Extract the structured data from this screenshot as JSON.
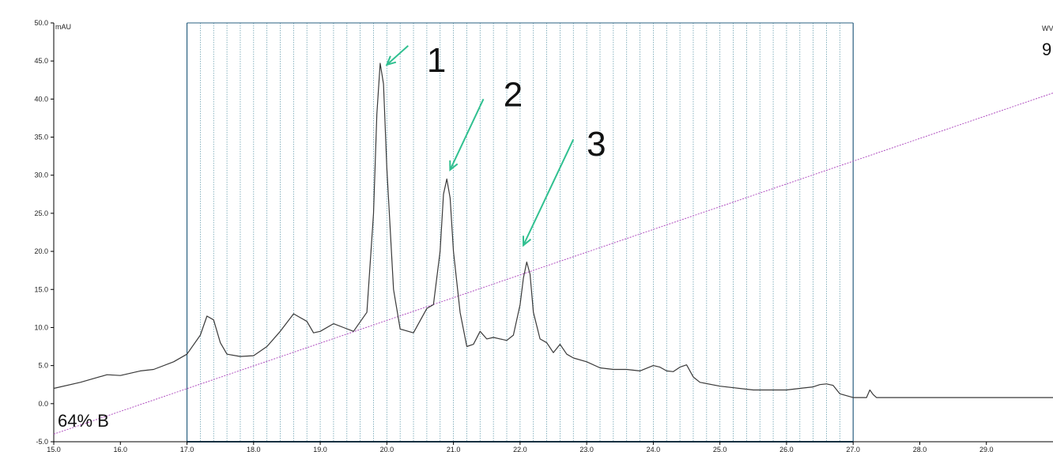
{
  "chart_data": {
    "type": "line",
    "title": "",
    "subtitle": "",
    "xlabel": "",
    "ylabel": "mAU",
    "ylabel_right": "WV",
    "right_value_text": "9",
    "gradient_label": "64% B",
    "xlim": [
      15.0,
      30.0
    ],
    "ylim": [
      -5.0,
      50.0
    ],
    "x_ticks": [
      15.0,
      16.0,
      17.0,
      18.0,
      19.0,
      20.0,
      21.0,
      22.0,
      23.0,
      24.0,
      25.0,
      26.0,
      27.0,
      28.0,
      29.0
    ],
    "x_tick_labels": [
      "15.0",
      "16.0",
      "17.0",
      "18.0",
      "19.0",
      "20.0",
      "21.0",
      "22.0",
      "23.0",
      "24.0",
      "25.0",
      "26.0",
      "27.0",
      "28.0",
      "29.0"
    ],
    "y_ticks": [
      -5.0,
      0.0,
      5.0,
      10.0,
      15.0,
      20.0,
      25.0,
      30.0,
      35.0,
      40.0,
      45.0,
      50.0
    ],
    "y_tick_labels": [
      "-5.0",
      "0.0",
      "5.0",
      "10.0",
      "15.0",
      "20.0",
      "25.0",
      "30.0",
      "35.0",
      "40.0",
      "45.0",
      "50.0"
    ],
    "series": [
      {
        "name": "",
        "x": [
          15.0,
          15.4,
          15.8,
          16.0,
          16.3,
          16.5,
          16.8,
          17.0,
          17.2,
          17.3,
          17.4,
          17.5,
          17.6,
          17.8,
          18.0,
          18.2,
          18.4,
          18.6,
          18.8,
          18.9,
          19.0,
          19.2,
          19.35,
          19.5,
          19.7,
          19.8,
          19.85,
          19.9,
          19.95,
          20.0,
          20.1,
          20.2,
          20.4,
          20.6,
          20.7,
          20.8,
          20.85,
          20.9,
          20.95,
          21.0,
          21.1,
          21.2,
          21.3,
          21.4,
          21.5,
          21.6,
          21.7,
          21.8,
          21.9,
          22.0,
          22.05,
          22.1,
          22.15,
          22.2,
          22.3,
          22.4,
          22.5,
          22.6,
          22.7,
          22.8,
          23.0,
          23.2,
          23.4,
          23.6,
          23.8,
          24.0,
          24.1,
          24.2,
          24.3,
          24.4,
          24.5,
          24.6,
          24.7,
          25.0,
          25.5,
          26.0,
          26.2,
          26.4,
          26.5,
          26.6,
          26.7,
          26.8,
          27.0,
          27.2,
          27.25,
          27.3,
          27.35,
          27.5,
          28.0,
          29.0,
          30.0
        ],
        "y": [
          2.0,
          2.8,
          3.8,
          3.7,
          4.3,
          4.5,
          5.5,
          6.5,
          9.0,
          11.5,
          11.0,
          8.0,
          6.5,
          6.2,
          6.3,
          7.5,
          9.5,
          11.8,
          10.8,
          9.3,
          9.5,
          10.5,
          10.0,
          9.5,
          12.0,
          25.0,
          38.0,
          44.7,
          42.0,
          31.0,
          15.0,
          9.8,
          9.3,
          12.5,
          13.0,
          20.0,
          27.5,
          29.5,
          27.0,
          20.0,
          12.0,
          7.5,
          7.8,
          9.5,
          8.5,
          8.7,
          8.5,
          8.3,
          9.0,
          13.0,
          16.5,
          18.6,
          17.0,
          12.0,
          8.5,
          8.0,
          6.7,
          7.8,
          6.5,
          6.0,
          5.5,
          4.7,
          4.5,
          4.5,
          4.3,
          5.0,
          4.8,
          4.3,
          4.2,
          4.8,
          5.1,
          3.5,
          2.8,
          2.3,
          1.8,
          1.8,
          2.0,
          2.2,
          2.5,
          2.6,
          2.4,
          1.3,
          0.8,
          0.8,
          1.8,
          1.2,
          0.8,
          0.8,
          0.8,
          0.8,
          0.8
        ]
      }
    ],
    "gradient_line": {
      "x": [
        15.0,
        30.0
      ],
      "y": [
        -4.0,
        40.8
      ]
    },
    "fraction_region": {
      "start": 17.0,
      "end": 27.0,
      "interval": 0.2
    },
    "annotations": [
      {
        "text": "1",
        "label_x": 20.6,
        "label_y": 45.0,
        "arrow_from": [
          20.32,
          47.0
        ],
        "arrow_to": [
          20.0,
          44.5
        ]
      },
      {
        "text": "2",
        "label_x": 21.75,
        "label_y": 40.5,
        "arrow_from": [
          21.45,
          40.0
        ],
        "arrow_to": [
          20.95,
          30.7
        ]
      },
      {
        "text": "3",
        "label_x": 23.0,
        "label_y": 34.0,
        "arrow_from": [
          22.8,
          34.7
        ],
        "arrow_to": [
          22.05,
          20.8
        ]
      }
    ],
    "colors": {
      "trace": "#3a3a3a",
      "gradient": "#b050c0",
      "fraction_lines": "#6aa0b0",
      "fraction_border": "#2a5f80",
      "arrows": "#30c090"
    }
  }
}
